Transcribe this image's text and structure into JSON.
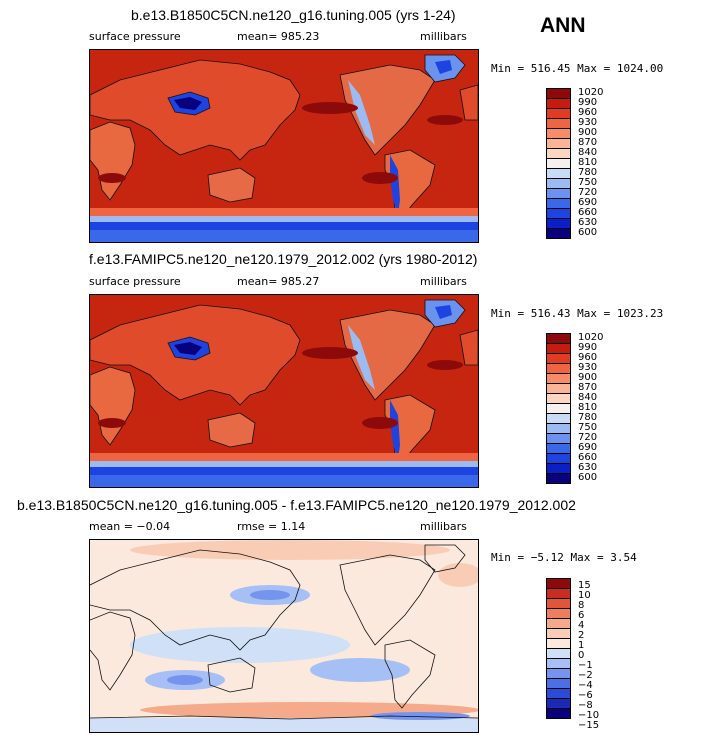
{
  "season": "ANN",
  "colors": {
    "abs": [
      "#08007c",
      "#0a1fc8",
      "#1d44e0",
      "#3a68ea",
      "#6a92ef",
      "#9bbbf2",
      "#c9dcf6",
      "#f4f1ef",
      "#fbd7c2",
      "#f9b596",
      "#f68c68",
      "#ef6441",
      "#e23b23",
      "#c51c0f",
      "#8d0a0a"
    ],
    "diff": [
      "#08007c",
      "#1a2ab5",
      "#2b4cd8",
      "#4a6fe6",
      "#7494ee",
      "#a6bff4",
      "#d0e0f7",
      "#fbe9dd",
      "#f9cdb5",
      "#f5ab8b",
      "#ee7f5c",
      "#e2553a",
      "#c72e1f",
      "#8d0a0a"
    ]
  },
  "panels": [
    {
      "title": "b.e13.B1850C5CN.ne120_g16.tuning.005 (yrs 1-24)",
      "left_label": "surface pressure",
      "mean_label": "mean=",
      "mean_value": "985.23",
      "units": "millibars",
      "minmax": "Min = 516.45 Max = 1024.00",
      "levels": [
        "1020",
        "990",
        "960",
        "930",
        "900",
        "870",
        "840",
        "810",
        "780",
        "750",
        "720",
        "690",
        "660",
        "630",
        "600"
      ]
    },
    {
      "title": "f.e13.FAMIPC5.ne120_ne120.1979_2012.002 (yrs 1980-2012)",
      "left_label": "surface pressure",
      "mean_label": "mean=",
      "mean_value": "985.27",
      "units": "millibars",
      "minmax": "Min = 516.43 Max = 1023.23",
      "levels": [
        "1020",
        "990",
        "960",
        "930",
        "900",
        "870",
        "840",
        "810",
        "780",
        "750",
        "720",
        "690",
        "660",
        "630",
        "600"
      ]
    },
    {
      "title": "b.e13.B1850C5CN.ne120_g16.tuning.005 - f.e13.FAMIPC5.ne120_ne120.1979_2012.002",
      "left_label": "mean =",
      "left_value": "−0.04",
      "mean_label": "rmse =",
      "mean_value": "1.14",
      "units": "millibars",
      "minmax": "Min =  −5.12 Max =    3.54",
      "levels": [
        "15",
        "10",
        "8",
        "6",
        "4",
        "2",
        "1",
        "0",
        "−1",
        "−2",
        "−4",
        "−6",
        "−8",
        "−10",
        "−15"
      ]
    }
  ],
  "chart_data": [
    {
      "type": "heatmap",
      "title": "b.e13.B1850C5CN.ne120_g16.tuning.005 (yrs 1-24)",
      "variable": "surface pressure",
      "units": "millibars",
      "mean": 985.23,
      "min": 516.45,
      "max": 1024.0,
      "contour_levels": [
        600,
        630,
        660,
        690,
        720,
        750,
        780,
        810,
        840,
        870,
        900,
        930,
        960,
        990,
        1020
      ]
    },
    {
      "type": "heatmap",
      "title": "f.e13.FAMIPC5.ne120_ne120.1979_2012.002 (yrs 1980-2012)",
      "variable": "surface pressure",
      "units": "millibars",
      "mean": 985.27,
      "min": 516.43,
      "max": 1023.23,
      "contour_levels": [
        600,
        630,
        660,
        690,
        720,
        750,
        780,
        810,
        840,
        870,
        900,
        930,
        960,
        990,
        1020
      ]
    },
    {
      "type": "heatmap",
      "title": "b.e13.B1850C5CN.ne120_g16.tuning.005 - f.e13.FAMIPC5.ne120_ne120.1979_2012.002",
      "units": "millibars",
      "mean": -0.04,
      "rmse": 1.14,
      "min": -5.12,
      "max": 3.54,
      "contour_levels": [
        -15,
        -10,
        -8,
        -6,
        -4,
        -2,
        -1,
        0,
        1,
        2,
        4,
        6,
        8,
        10,
        15
      ]
    }
  ]
}
